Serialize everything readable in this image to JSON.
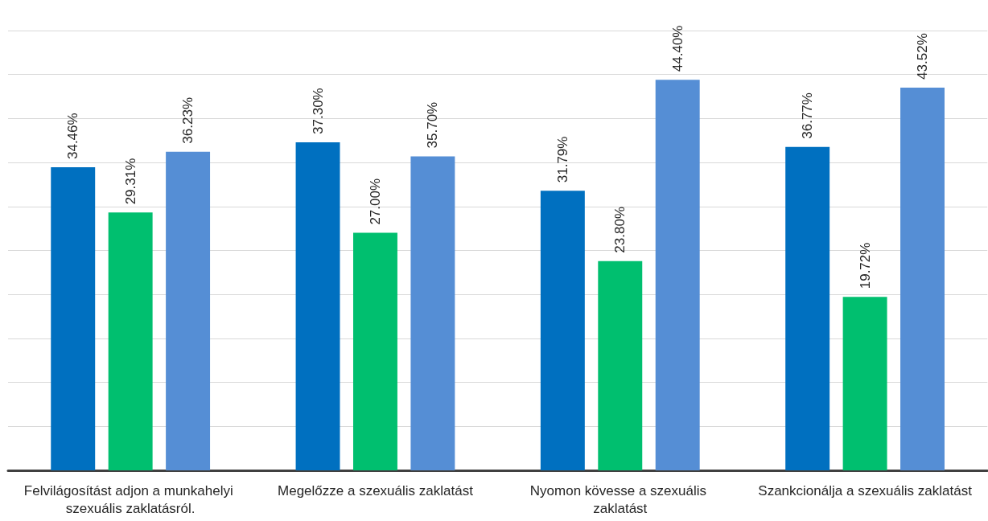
{
  "chart_data": {
    "type": "bar",
    "categories": [
      "Felvilágosítást adjon a munkahelyi szexuális zaklatásról.",
      "Megelőzze a szexuális zaklatást",
      "Nyomon kövesse a szexuális zaklatást",
      "Szankcionálja a szexuális zaklatást"
    ],
    "series": [
      {
        "color": "#0070c0",
        "values": [
          34.46,
          37.3,
          31.79,
          36.77
        ],
        "value_labels": [
          "34.46%",
          "37.30%",
          "31.79%",
          "36.77%"
        ]
      },
      {
        "color": "#00bf6f",
        "values": [
          29.31,
          27.0,
          23.8,
          19.72
        ],
        "value_labels": [
          "29.31%",
          "27.00%",
          "23.80%",
          "19.72%"
        ]
      },
      {
        "color": "#558ed5",
        "values": [
          36.23,
          35.7,
          44.4,
          43.52
        ],
        "value_labels": [
          "36.23%",
          "35.70%",
          "44.40%",
          "43.52%"
        ]
      }
    ],
    "ylim": [
      0,
      50
    ],
    "yticks": [
      {
        "value": 0,
        "label": null
      },
      {
        "value": 5,
        "label": null
      },
      {
        "value": 10,
        "label": null
      },
      {
        "value": 15,
        "label": null
      },
      {
        "value": 20,
        "label": null
      },
      {
        "value": 25,
        "label": null
      },
      {
        "value": 30,
        "label": null
      },
      {
        "value": 35,
        "label": null
      },
      {
        "value": 40,
        "label": null
      },
      {
        "value": 45,
        "label": null
      },
      {
        "value": 50,
        "label": null
      }
    ],
    "grid": "y",
    "tick_labels": "x"
  }
}
